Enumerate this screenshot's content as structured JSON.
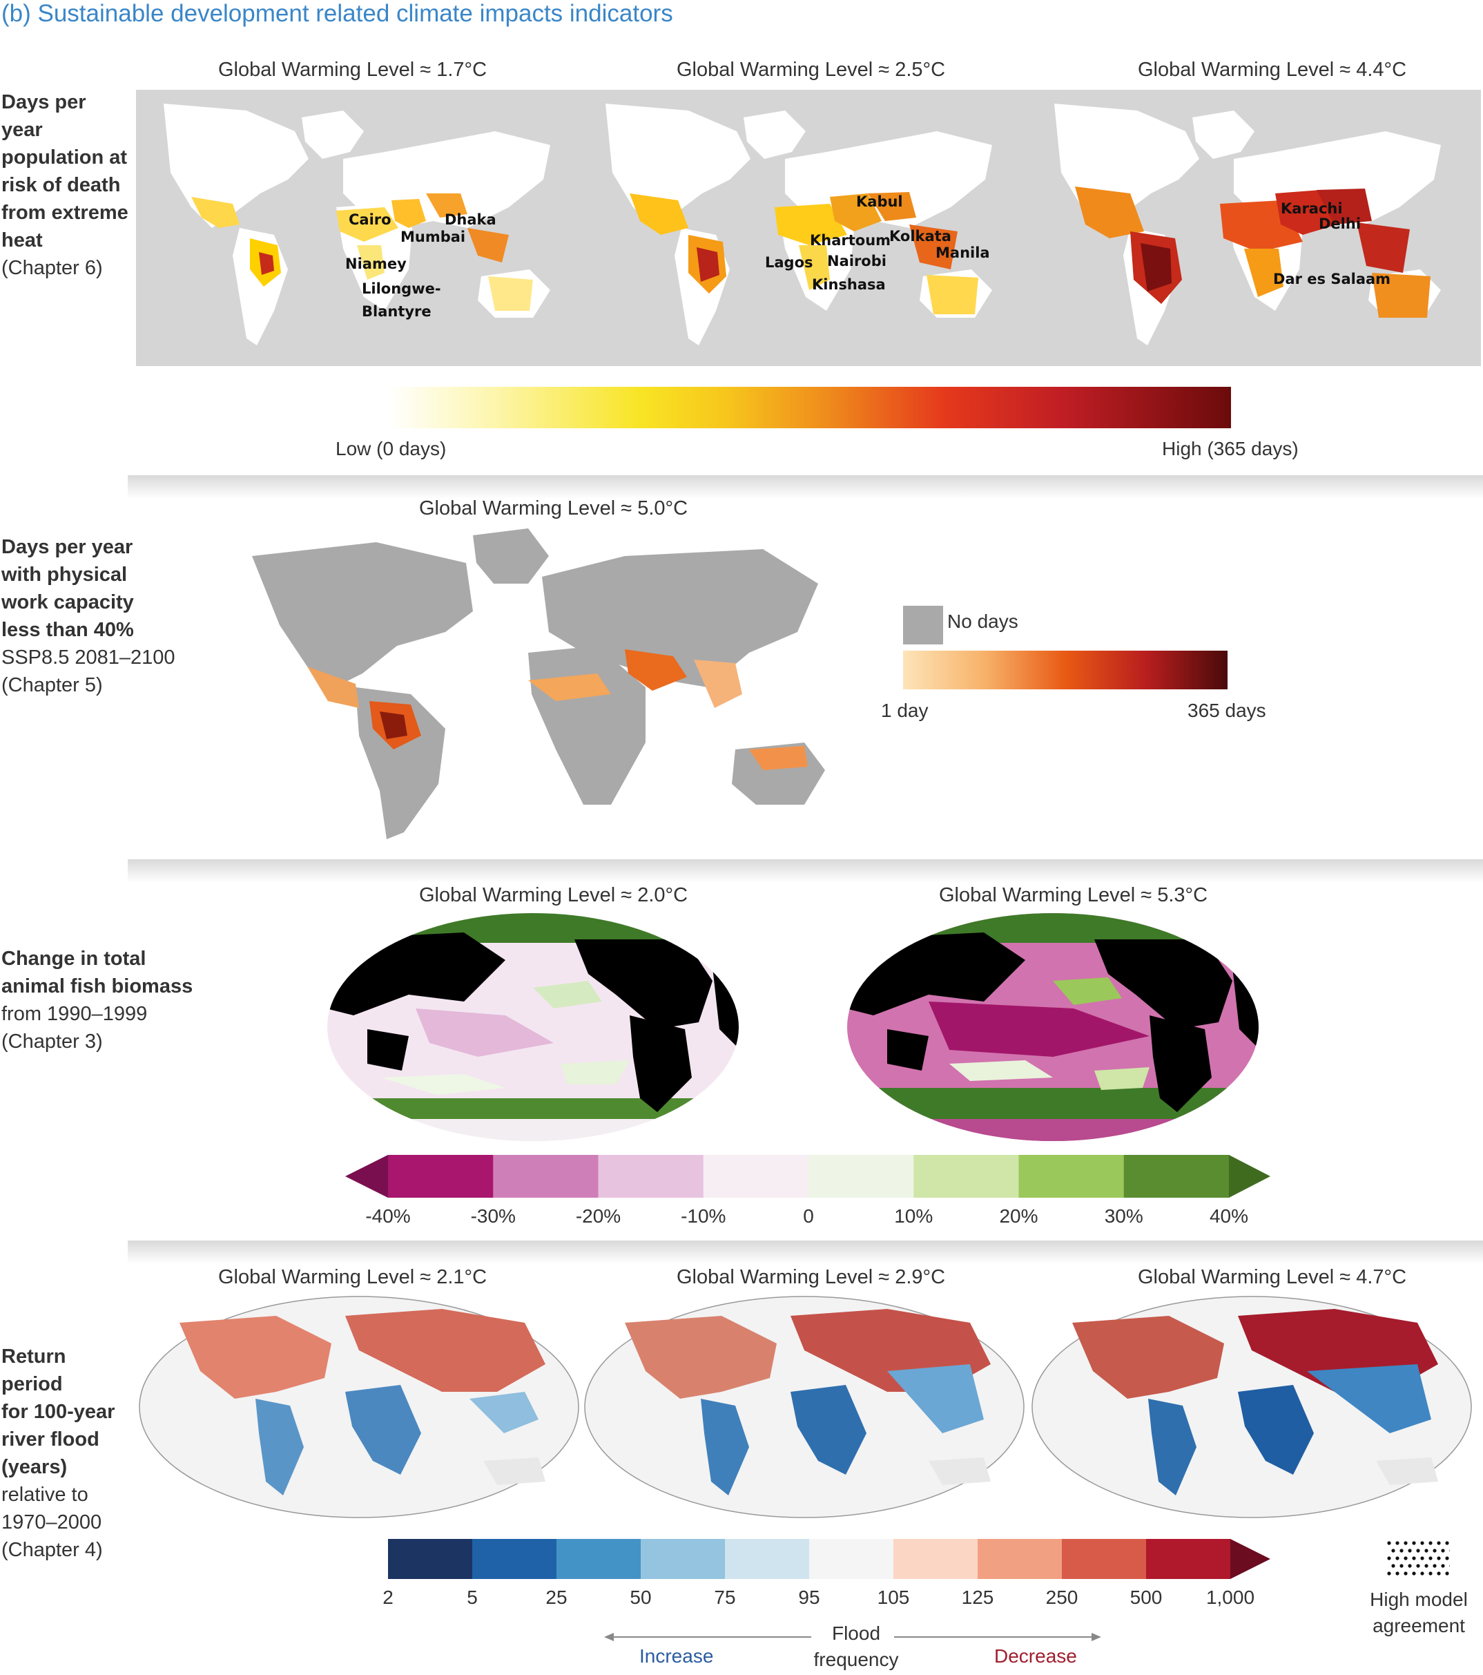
{
  "title": "(b) Sustainable development related climate impacts indicators",
  "heat": {
    "label_bold": [
      "Days per year",
      "population at",
      "risk of death",
      "from extreme",
      "heat"
    ],
    "label_plain": [
      "(Chapter 6)"
    ],
    "gwl": [
      "Global Warming Level ≈ 1.7°C",
      "Global Warming Level ≈ 2.5°C",
      "Global Warming Level ≈ 4.4°C"
    ],
    "cities_map1": [
      "Cairo",
      "Dhaka",
      "Mumbai",
      "Niamey",
      "Lilongwe-",
      "Blantyre"
    ],
    "cities_map2": [
      "Kabul",
      "Khartoum",
      "Kolkata",
      "Lagos",
      "Nairobi",
      "Manila",
      "Kinshasa"
    ],
    "cities_map3": [
      "Karachi",
      "Delhi",
      "Dar es Salaam"
    ],
    "scale_low": "Low (0 days)",
    "scale_high": "High (365 days)"
  },
  "work": {
    "label_bold": [
      "Days per year",
      "with physical",
      "work capacity",
      "less than 40%"
    ],
    "label_plain": [
      "SSP8.5 2081–2100",
      "(Chapter 5)"
    ],
    "gwl": "Global Warming Level ≈ 5.0°C",
    "no_days": "No days",
    "scale_low": "1 day",
    "scale_high": "365 days"
  },
  "fish": {
    "label_bold": [
      "Change in total",
      "animal fish biomass"
    ],
    "label_plain": [
      "from 1990–1999",
      "(Chapter 3)"
    ],
    "gwl": [
      "Global Warming Level ≈ 2.0°C",
      "Global Warming Level ≈ 5.3°C"
    ],
    "ticks": [
      "-40%",
      "-30%",
      "-20%",
      "-10%",
      "0",
      "10%",
      "20%",
      "30%",
      "40%"
    ],
    "colors": [
      "#a8166e",
      "#cf7fb8",
      "#e8c3e0",
      "#f6eef3",
      "#eef5e6",
      "#cfe6a8",
      "#9bc85a",
      "#5a8c30"
    ],
    "end_low": "#7a0f50",
    "end_high": "#3f6b1f"
  },
  "flood": {
    "label_bold": [
      "Return period",
      "for 100-year",
      "river flood",
      "(years)"
    ],
    "label_plain": [
      "relative to",
      "1970–2000",
      "(Chapter 4)"
    ],
    "gwl": [
      "Global Warming Level ≈ 2.1°C",
      "Global Warming Level ≈ 2.9°C",
      "Global Warming Level ≈ 4.7°C"
    ],
    "ticks": [
      "2",
      "5",
      "25",
      "50",
      "75",
      "95",
      "105",
      "125",
      "250",
      "500",
      "1,000"
    ],
    "colors": [
      "#1c3461",
      "#1f62a8",
      "#4493c6",
      "#94c4df",
      "#d0e4f0",
      "#f5f5f5",
      "#fcd6c4",
      "#f2a082",
      "#d85b49",
      "#b0182c"
    ],
    "end_high": "#6b0c20",
    "high_agreement": [
      "High model",
      "agreement"
    ],
    "flood_label": [
      "Flood",
      "frequency"
    ],
    "increase": "Increase",
    "decrease": "Decrease",
    "increase_color": "#2a5ca0",
    "decrease_color": "#a01e2e"
  }
}
